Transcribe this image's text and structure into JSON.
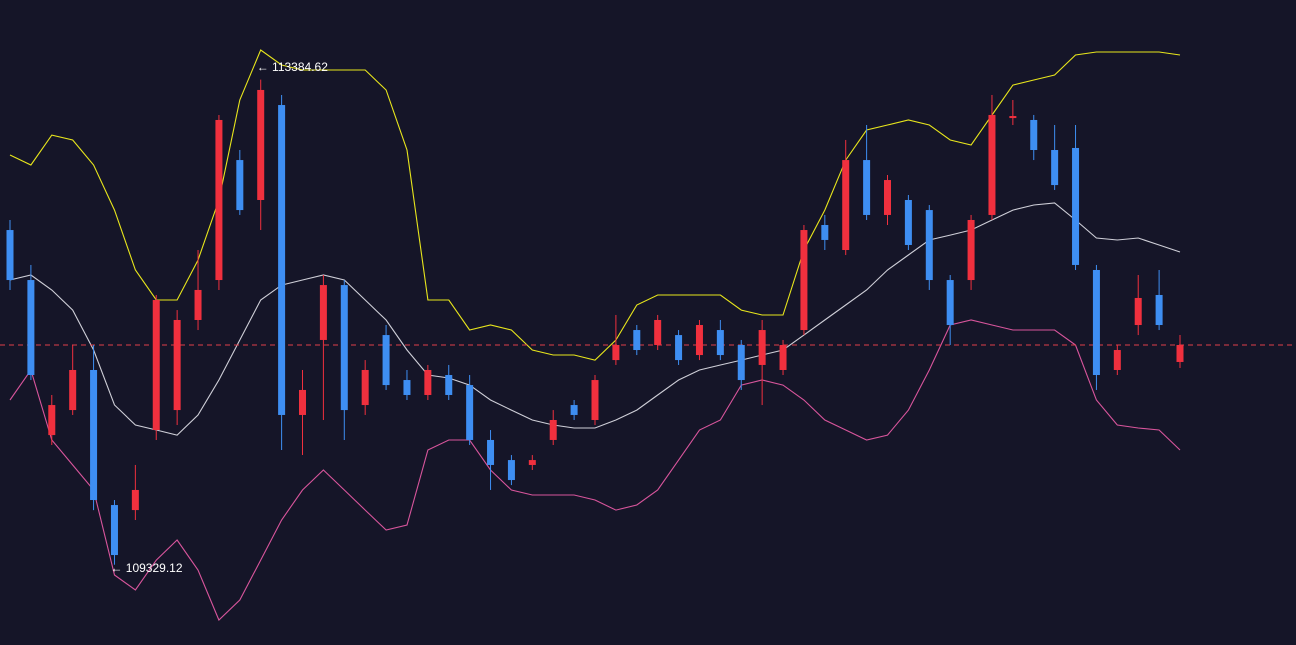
{
  "chart_data": {
    "type": "candlestick",
    "ylim": [
      108658,
      114050
    ],
    "up_color": "#f0303e",
    "down_color": "#3e8ef2",
    "background": "#151528",
    "open": [
      112127,
      111709,
      110413,
      110622,
      110957,
      109828,
      109786,
      110455,
      110622,
      111375,
      111709,
      112712,
      112378,
      113172,
      110581,
      111208,
      111667,
      110664,
      111249,
      110873,
      110748,
      110915,
      110831,
      110372,
      110204,
      110163,
      110372,
      110664,
      110539,
      111040,
      111291,
      111166,
      111249,
      111082,
      111291,
      111166,
      110999,
      110957,
      111291,
      112169,
      111960,
      112712,
      112253,
      112378,
      112294,
      111709,
      111709,
      112253,
      113063,
      113047,
      112796,
      112813,
      111793,
      110957,
      111333,
      111584,
      111024
    ],
    "high": [
      112211,
      111835,
      110748,
      111166,
      111166,
      109870,
      110163,
      111584,
      111458,
      111960,
      113089,
      112796,
      113384.62,
      113256,
      110957,
      111751,
      111709,
      111040,
      111333,
      110957,
      110999,
      110999,
      110915,
      110455,
      110246,
      110246,
      110622,
      110706,
      110915,
      111417,
      111333,
      111417,
      111291,
      111375,
      111375,
      111208,
      111375,
      111208,
      112169,
      112253,
      112880,
      113005,
      112587,
      112420,
      112336,
      111751,
      112253,
      113256,
      113214,
      113089,
      113005,
      113005,
      111835,
      111166,
      111751,
      111793,
      111249
    ],
    "low": [
      111626,
      110873,
      110330,
      110581,
      109786,
      109329.12,
      109703,
      110372,
      110497,
      111291,
      111626,
      112253,
      112127,
      110288,
      110246,
      110539,
      110372,
      110581,
      110790,
      110706,
      110706,
      110706,
      110330,
      109954,
      109995,
      110121,
      110330,
      110539,
      110497,
      110999,
      111082,
      111124,
      110999,
      111040,
      111040,
      110790,
      110664,
      110915,
      111249,
      111960,
      111918,
      112211,
      112169,
      111960,
      111626,
      111166,
      111626,
      112211,
      113005,
      112712,
      112462,
      111793,
      110790,
      110915,
      111249,
      111291,
      110974
    ],
    "close": [
      111709,
      110915,
      110664,
      110957,
      109870,
      109410,
      109954,
      111542,
      111375,
      111626,
      113047,
      112294,
      113298,
      110581,
      110790,
      111667,
      110622,
      110957,
      110831,
      110748,
      110957,
      110748,
      110372,
      110163,
      110037,
      110204,
      110539,
      110581,
      110873,
      111166,
      111124,
      111375,
      111040,
      111333,
      111082,
      110873,
      111291,
      111166,
      112127,
      112044,
      112712,
      112253,
      112545,
      112002,
      111709,
      111333,
      112211,
      113089,
      113080,
      112796,
      112503,
      111835,
      110915,
      111124,
      111559,
      111333,
      111166
    ],
    "bands": {
      "upper": {
        "color": "#e8e61c",
        "values": [
          112754,
          112671,
          112921,
          112880,
          112671,
          112294,
          111793,
          111542,
          111542,
          111876,
          112378,
          113214,
          113632,
          113507,
          113465,
          113465,
          113465,
          113465,
          113298,
          112796,
          111542,
          111542,
          111291,
          111333,
          111291,
          111124,
          111082,
          111082,
          111040,
          111208,
          111500,
          111584,
          111584,
          111584,
          111584,
          111458,
          111417,
          111417,
          111960,
          112294,
          112712,
          112963,
          113005,
          113047,
          113005,
          112880,
          112838,
          113089,
          113339,
          113381,
          113423,
          113590,
          113615,
          113615,
          113615,
          113615,
          113590
        ]
      },
      "middle": {
        "color": "#cfcfd8",
        "values": [
          111709,
          111751,
          111626,
          111458,
          111124,
          110664,
          110497,
          110455,
          110413,
          110581,
          110873,
          111208,
          111542,
          111667,
          111709,
          111751,
          111709,
          111542,
          111375,
          111124,
          110915,
          110890,
          110831,
          110706,
          110622,
          110539,
          110497,
          110472,
          110472,
          110539,
          110622,
          110748,
          110873,
          110957,
          110999,
          111040,
          111082,
          111124,
          111249,
          111375,
          111500,
          111626,
          111793,
          111918,
          112044,
          112085,
          112127,
          112211,
          112294,
          112336,
          112353,
          112211,
          112060,
          112044,
          112060,
          112002,
          111943
        ]
      },
      "lower": {
        "color": "#d8559c",
        "values": [
          110706,
          110957,
          110372,
          110163,
          109954,
          109243,
          109118,
          109368,
          109536,
          109285,
          108867,
          109034,
          109368,
          109703,
          109954,
          110121,
          109954,
          109786,
          109619,
          109661,
          110288,
          110372,
          110372,
          110121,
          109954,
          109912,
          109912,
          109912,
          109870,
          109786,
          109828,
          109954,
          110204,
          110455,
          110539,
          110831,
          110873,
          110831,
          110706,
          110539,
          110455,
          110372,
          110413,
          110622,
          110957,
          111333,
          111375,
          111333,
          111291,
          111291,
          111291,
          111166,
          110706,
          110497,
          110472,
          110455,
          110288
        ]
      }
    },
    "price_line": {
      "value": 111166,
      "color": "#e0404a"
    },
    "annotations": [
      {
        "value": 113384.62,
        "label": "← 113384.62",
        "at": "high"
      },
      {
        "value": 109329.12,
        "label": "← 109329.12",
        "at": "low"
      }
    ]
  }
}
